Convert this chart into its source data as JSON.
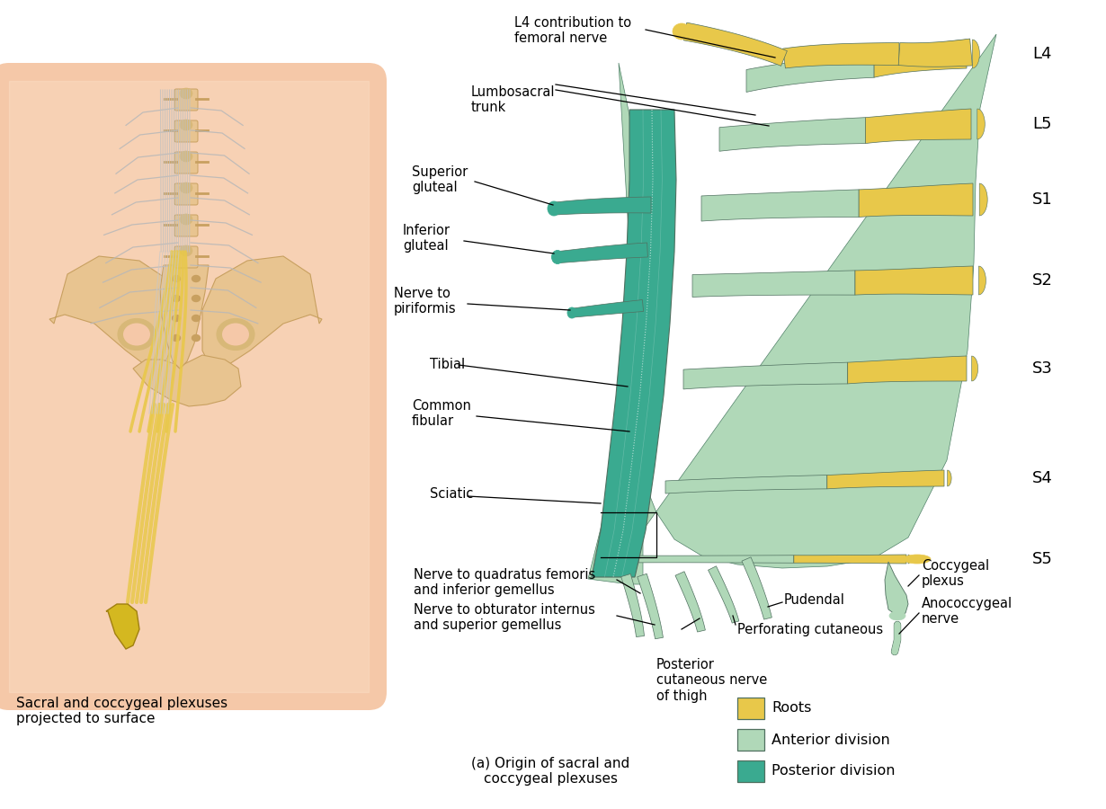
{
  "background": "#ffffff",
  "skin_color": "#f5c8a8",
  "bone_color": "#e8c490",
  "bone_edge": "#c8a060",
  "root_color": "#e8c84a",
  "anterior_color": "#b0d8b8",
  "posterior_color": "#3aaa90",
  "left_caption": "Sacral and coccygeal plexuses\nprojected to surface",
  "right_caption": "(a) Origin of sacral and\ncoccygeal plexuses",
  "roots": [
    "L4",
    "L5",
    "S1",
    "S2",
    "S3",
    "S4",
    "S5"
  ],
  "legend": [
    {
      "color": "#e8c84a",
      "label": "Roots"
    },
    {
      "color": "#b0d8b8",
      "label": "Anterior division"
    },
    {
      "color": "#3aaa90",
      "label": "Posterior division"
    }
  ]
}
